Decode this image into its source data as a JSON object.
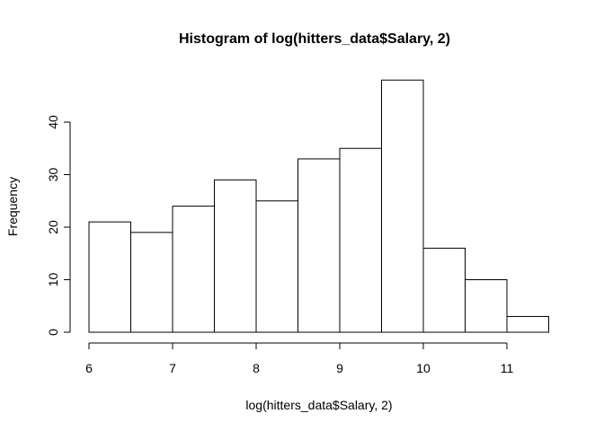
{
  "chart_data": {
    "type": "bar",
    "title": "Histogram of log(hitters_data$Salary, 2)",
    "xlabel": "log(hitters_data$Salary, 2)",
    "ylabel": "Frequency",
    "bin_edges": [
      6,
      6.5,
      7,
      7.5,
      8,
      8.5,
      9,
      9.5,
      10,
      10.5,
      11,
      11.5
    ],
    "values": [
      21,
      19,
      24,
      29,
      25,
      33,
      35,
      48,
      16,
      10,
      3
    ],
    "xticks": [
      6,
      7,
      8,
      9,
      10,
      11
    ],
    "yticks": [
      0,
      10,
      20,
      30,
      40
    ],
    "xlim": [
      6,
      11.5
    ],
    "ylim": [
      0,
      48
    ],
    "grid": false,
    "bar_fill": "#ffffff",
    "bar_stroke": "#000000"
  }
}
